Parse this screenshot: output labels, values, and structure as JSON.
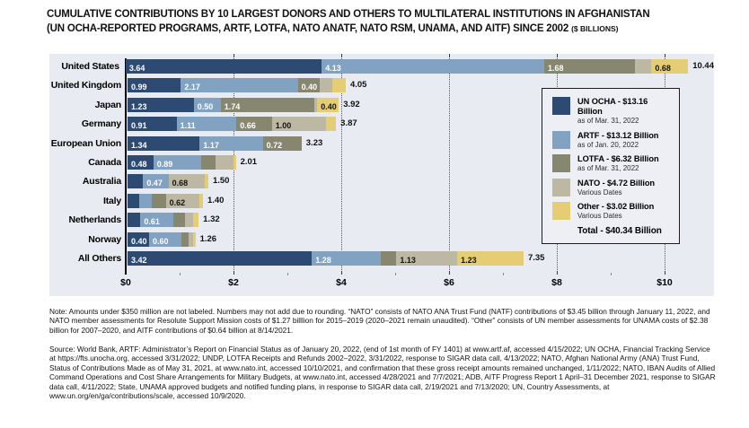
{
  "title": {
    "line1": "CUMULATIVE CONTRIBUTIONS BY 10 LARGEST DONORS AND OTHERS TO MULTILATERAL INSTITUTIONS IN AFGHANISTAN",
    "line2": "(UN OCHA-REPORTED PROGRAMS, ARTF, LOTFA, NATO ANATF, NATO RSM, UNAMA, AND AITF) SINCE 2002",
    "unit": "($ BILLIONS)"
  },
  "chart_data": {
    "type": "bar",
    "orientation": "horizontal-stacked",
    "unit": "$ billions",
    "x_ticks": [
      "$0",
      "$2",
      "$4",
      "$6",
      "$8",
      "$10"
    ],
    "x_tick_values": [
      0,
      2,
      4,
      6,
      8,
      10
    ],
    "xlim": [
      0,
      10.9
    ],
    "grid": "dotted-vertical",
    "legend_position": "inside-right",
    "series_names": [
      "UN OCHA",
      "ARTF",
      "LOTFA",
      "NATO",
      "Other"
    ],
    "series_colors": [
      "#2d4a72",
      "#82a2c1",
      "#87866f",
      "#bdb8a3",
      "#e4cd75"
    ],
    "label_text_colors": [
      "#ffffff",
      "#ffffff",
      "#ffffff",
      "#141414",
      "#141414"
    ],
    "unlabeled_values_estimated": true,
    "rows": [
      {
        "category": "United States",
        "values": [
          3.64,
          4.13,
          1.68,
          0.31,
          0.68
        ],
        "labels": [
          "3.64",
          "4.13",
          "1.68",
          null,
          "0.68"
        ],
        "total": "10.44"
      },
      {
        "category": "United Kingdom",
        "values": [
          0.99,
          2.17,
          0.4,
          0.24,
          0.25
        ],
        "labels": [
          "0.99",
          "2.17",
          "0.40",
          null,
          null
        ],
        "total": "4.05"
      },
      {
        "category": "Japan",
        "values": [
          1.23,
          0.5,
          1.74,
          0.05,
          0.4
        ],
        "labels": [
          "1.23",
          "0.50",
          "1.74",
          null,
          "0.40"
        ],
        "total": "3.92"
      },
      {
        "category": "Germany",
        "values": [
          0.91,
          1.11,
          0.66,
          1.0,
          0.19
        ],
        "labels": [
          "0.91",
          "1.11",
          "0.66",
          "1.00",
          null
        ],
        "total": "3.87"
      },
      {
        "category": "European Union",
        "values": [
          1.34,
          1.17,
          0.72,
          0,
          0
        ],
        "labels": [
          "1.34",
          "1.17",
          "0.72",
          null,
          null
        ],
        "total": "3.23"
      },
      {
        "category": "Canada",
        "values": [
          0.48,
          0.89,
          0.26,
          0.33,
          0.05
        ],
        "labels": [
          "0.48",
          "0.89",
          null,
          null,
          null
        ],
        "total": "2.01"
      },
      {
        "category": "Australia",
        "values": [
          0.29,
          0.47,
          0,
          0.68,
          0.06
        ],
        "labels": [
          null,
          "0.47",
          null,
          "0.68",
          null
        ],
        "total": "1.50"
      },
      {
        "category": "Italy",
        "values": [
          0.22,
          0.23,
          0.26,
          0.62,
          0.07
        ],
        "labels": [
          null,
          null,
          null,
          "0.62",
          null
        ],
        "total": "1.40"
      },
      {
        "category": "Netherlands",
        "values": [
          0.24,
          0.61,
          0.22,
          0.14,
          0.11
        ],
        "labels": [
          null,
          "0.61",
          null,
          null,
          null
        ],
        "total": "1.32"
      },
      {
        "category": "Norway",
        "values": [
          0.4,
          0.6,
          0.14,
          0.07,
          0.05
        ],
        "labels": [
          "0.40",
          "0.60",
          null,
          null,
          null
        ],
        "total": "1.26"
      },
      {
        "category": "All Others",
        "values": [
          3.42,
          1.28,
          0.29,
          1.13,
          1.23
        ],
        "labels": [
          "3.42",
          "1.28",
          null,
          "1.13",
          "1.23"
        ],
        "total": "7.35"
      }
    ]
  },
  "legend": {
    "entries": [
      {
        "name": "UN OCHA - $13.16 Billion",
        "date": "as of Mar. 31, 2022"
      },
      {
        "name": "ARTF - $13.12 Billion",
        "date": "as of Jan. 20, 2022"
      },
      {
        "name": "LOTFA - $6.32 Billion",
        "date": "as of Mar. 31, 2022"
      },
      {
        "name": "NATO - $4.72 Billion",
        "date": "Various Dates"
      },
      {
        "name": "Other - $3.02 Billion",
        "date": "Various Dates"
      }
    ],
    "total": "Total - $40.34 Billion"
  },
  "note": "Note: Amounts under $350 million are not labeled. Numbers may not add due to rounding. “NATO” consists of NATO ANA Trust Fund (NATF) contributions of $3.45 billion through January 11, 2022, and NATO member assessments for Resolute Support Mission costs of $1.27 billlion for 2015–2019 (2020–2021 remain unaudited). “Other” consists of UN member assessments for UNAMA costs of $2.38 billion for 2007–2020, and AITF contributions of $0.64 billion at 8/14/2021.",
  "source": "Source: World Bank, ARTF: Administrator’s Report on Financial Status as of January 20, 2022, (end of 1st month of FY 1401) at www.artf.af, accessed 4/15/2022; UN OCHA, Financial Tracking Service at https://fts.unocha.org, accessed 3/31/2022; UNDP, LOTFA Receipts and Refunds 2002–2022, 3/31/2022, response to SIGAR data call, 4/13/2022; NATO, Afghan National Army (ANA) Trust Fund, Status of Contributions Made as of May 31, 2021, at www.nato.int, accessed 10/10/2021, and confirmation that these gross receipt amounts remained unchanged, 1/11/2022; NATO, IBAN Audits of Allied Command Operations and Cost Share Arrangements for Military Budgets, at www.nato.int, accessed 4/28/2021 and 7/7/2021; ADB, AITF Progress Report 1 April–31 December 2021, response to SIGAR data call, 4/11/2022; State, UNAMA approved budgets and notified funding plans, in response to SIGAR data call, 2/19/2021 and 7/13/2020; UN, Country Assessments, at www.un.org/en/ga/contributions/scale, accessed 10/9/2020."
}
